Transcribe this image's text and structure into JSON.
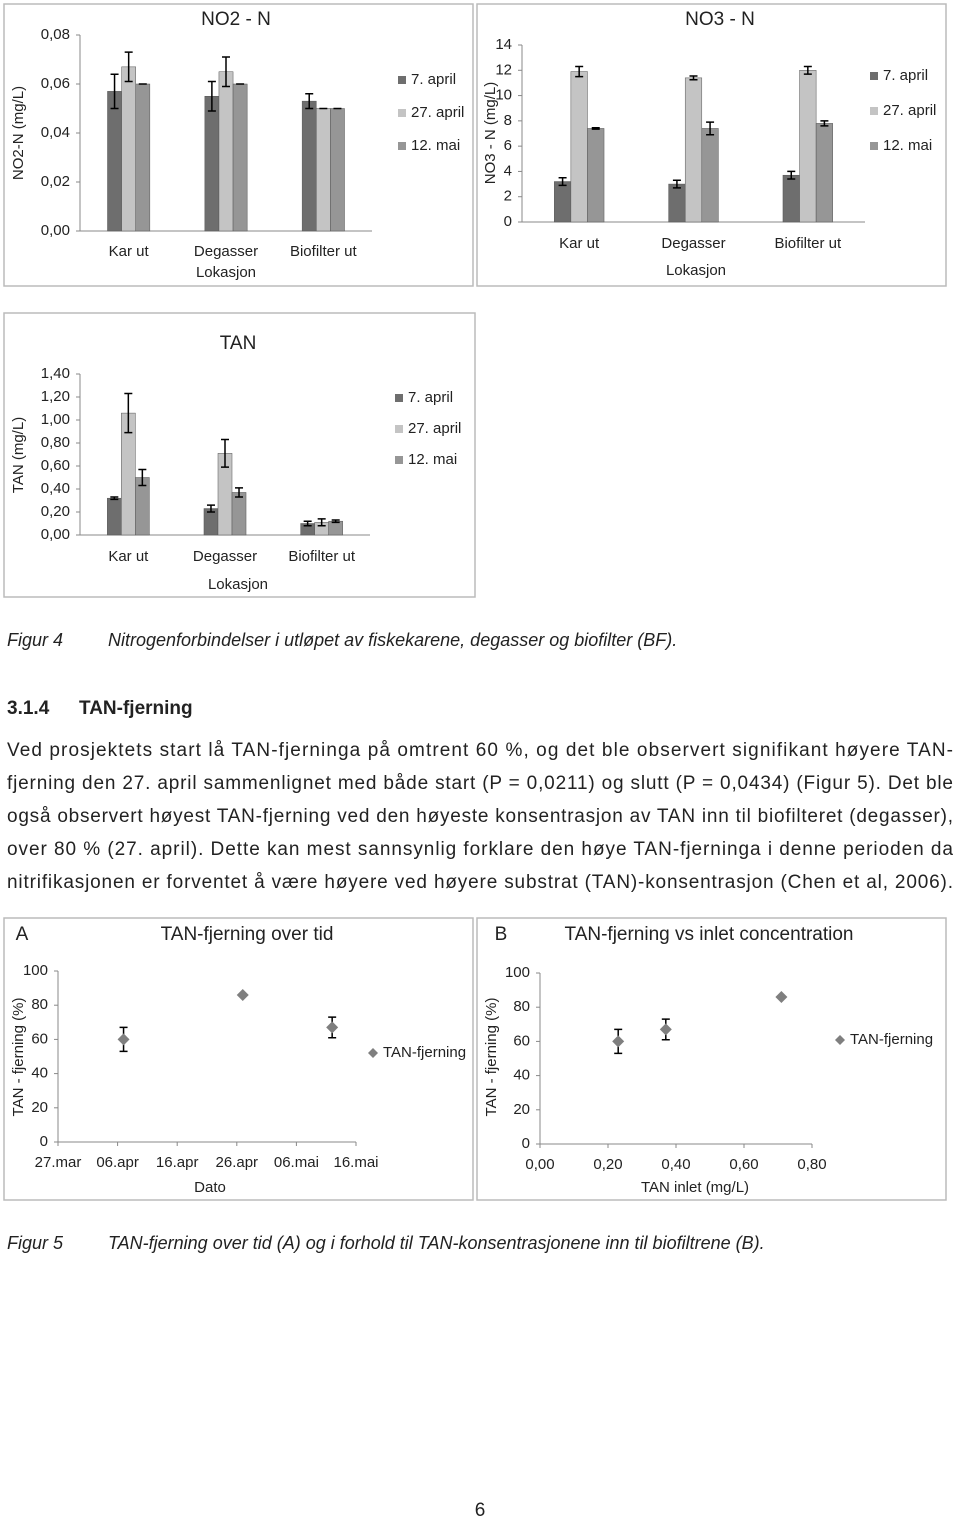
{
  "chart_data": [
    {
      "type": "bar",
      "title": "NO2 - N",
      "y_label": "NO2-N (mg/L)",
      "x_label": "Lokasjon",
      "categories": [
        "Kar ut",
        "Degasser",
        "Biofilter ut"
      ],
      "series": [
        {
          "name": "7. april",
          "color": "#6e6e6e",
          "values": [
            0.057,
            0.055,
            0.053
          ],
          "errors": [
            0.007,
            0.006,
            0.003
          ]
        },
        {
          "name": "27. april",
          "color": "#c4c4c4",
          "values": [
            0.067,
            0.065,
            0.05
          ],
          "errors": [
            0.006,
            0.006,
            0
          ]
        },
        {
          "name": "12. mai",
          "color": "#969696",
          "values": [
            0.06,
            0.06,
            0.05
          ],
          "errors": [
            0,
            0,
            0
          ]
        }
      ],
      "ylim": [
        0,
        0.08
      ],
      "yticks": [
        {
          "value": 0,
          "label": "0,00"
        },
        {
          "value": 0.02,
          "label": "0,02"
        },
        {
          "value": 0.04,
          "label": "0,04"
        },
        {
          "value": 0.06,
          "label": "0,06"
        },
        {
          "value": 0.08,
          "label": "0,08"
        }
      ],
      "legend": "right"
    },
    {
      "type": "bar",
      "title": "NO3 - N",
      "y_label": "NO3 - N (mg/L)",
      "x_label": "Lokasjon",
      "categories": [
        "Kar ut",
        "Degasser",
        "Biofilter ut"
      ],
      "series": [
        {
          "name": "7. april",
          "color": "#6e6e6e",
          "values": [
            3.2,
            3.0,
            3.7
          ],
          "errors": [
            0.3,
            0.3,
            0.3
          ]
        },
        {
          "name": "27. april",
          "color": "#c4c4c4",
          "values": [
            11.9,
            11.4,
            12.0
          ],
          "errors": [
            0.4,
            0.15,
            0.3
          ]
        },
        {
          "name": "12. mai",
          "color": "#969696",
          "values": [
            7.4,
            7.4,
            7.8
          ],
          "errors": [
            0.05,
            0.5,
            0.2
          ]
        }
      ],
      "ylim": [
        0,
        14
      ],
      "yticks": [
        0,
        2,
        4,
        6,
        8,
        10,
        12,
        14
      ],
      "legend": "right"
    },
    {
      "type": "bar",
      "title": "TAN",
      "y_label": "TAN (mg/L)",
      "x_label": "Lokasjon",
      "categories": [
        "Kar ut",
        "Degasser",
        "Biofilter ut"
      ],
      "series": [
        {
          "name": "7. april",
          "color": "#6e6e6e",
          "values": [
            0.32,
            0.23,
            0.1
          ],
          "errors": [
            0.01,
            0.03,
            0.02
          ]
        },
        {
          "name": "27. april",
          "color": "#c4c4c4",
          "values": [
            1.06,
            0.71,
            0.11
          ],
          "errors": [
            0.17,
            0.12,
            0.03
          ]
        },
        {
          "name": "12. mai",
          "color": "#969696",
          "values": [
            0.5,
            0.37,
            0.12
          ],
          "errors": [
            0.07,
            0.04,
            0.01
          ]
        }
      ],
      "ylim": [
        0,
        1.4
      ],
      "yticks": [
        {
          "value": 0,
          "label": "0,00"
        },
        {
          "value": 0.2,
          "label": "0,20"
        },
        {
          "value": 0.4,
          "label": "0,40"
        },
        {
          "value": 0.6,
          "label": "0,60"
        },
        {
          "value": 0.8,
          "label": "0,80"
        },
        {
          "value": 1.0,
          "label": "1,00"
        },
        {
          "value": 1.2,
          "label": "1,20"
        },
        {
          "value": 1.4,
          "label": "1,40"
        }
      ],
      "legend": "right"
    },
    {
      "type": "scatter",
      "panel": "A",
      "title": "TAN-fjerning over tid",
      "y_label": "TAN - fjerning (%)",
      "x_label": "Dato",
      "series": [
        {
          "name": "TAN-fjerning",
          "color": "#7f7f7f",
          "x": [
            "07.apr",
            "27.apr",
            "12.mai"
          ],
          "values": [
            60,
            86,
            67
          ],
          "errors": [
            7,
            0,
            6
          ]
        }
      ],
      "xlim": [
        "27.mar",
        "16.mai"
      ],
      "xticks": [
        "27.mar",
        "06.apr",
        "16.apr",
        "26.apr",
        "06.mai",
        "16.mai"
      ],
      "ylim": [
        0,
        100
      ],
      "yticks": [
        0,
        20,
        40,
        60,
        80,
        100
      ],
      "legend": "right"
    },
    {
      "type": "scatter",
      "panel": "B",
      "title": "TAN-fjerning vs inlet concentration",
      "y_label": "TAN - fjerning (%)",
      "x_label": "TAN inlet (mg/L)",
      "series": [
        {
          "name": "TAN-fjerning",
          "color": "#7f7f7f",
          "x": [
            0.23,
            0.37,
            0.71
          ],
          "values": [
            60,
            67,
            86
          ],
          "errors": [
            7,
            6,
            0
          ]
        }
      ],
      "xlim": [
        0,
        0.8
      ],
      "xticks": [
        {
          "value": 0,
          "label": "0,00"
        },
        {
          "value": 0.2,
          "label": "0,20"
        },
        {
          "value": 0.4,
          "label": "0,40"
        },
        {
          "value": 0.6,
          "label": "0,60"
        },
        {
          "value": 0.8,
          "label": "0,80"
        }
      ],
      "ylim": [
        0,
        100
      ],
      "yticks": [
        0,
        20,
        40,
        60,
        80,
        100
      ],
      "legend": "right"
    }
  ],
  "figure_4": {
    "label": "Figur 4",
    "caption": "Nitrogenforbindelser i utløpet av fiskekarene, degasser og biofilter (BF)."
  },
  "section": {
    "number": "3.1.4",
    "title": "TAN-fjerning"
  },
  "paragraph_lines": [
    "Ved prosjektets start lå TAN-fjerninga på omtrent 60 %, og det ble observert signifikant høyere TAN-",
    "fjerning den 27. april sammenlignet med både start (P = 0,0211) og slutt (P = 0,0434) (Figur 5). Det ble",
    "også observert høyest TAN-fjerning ved den høyeste konsentrasjon av TAN inn til biofilteret (degasser),",
    "over 80 % (27. april). Dette kan mest sannsynlig forklare den høye TAN-fjerninga i denne perioden da",
    "nitrifikasjonen er forventet å være høyere ved høyere substrat (TAN)-konsentrasjon (Chen et al, 2006)."
  ],
  "figure_5": {
    "label": "Figur 5",
    "caption": "TAN-fjerning over tid (A) og i forhold til TAN-konsentrasjonene inn til biofiltrene (B)."
  },
  "page_number": "6"
}
